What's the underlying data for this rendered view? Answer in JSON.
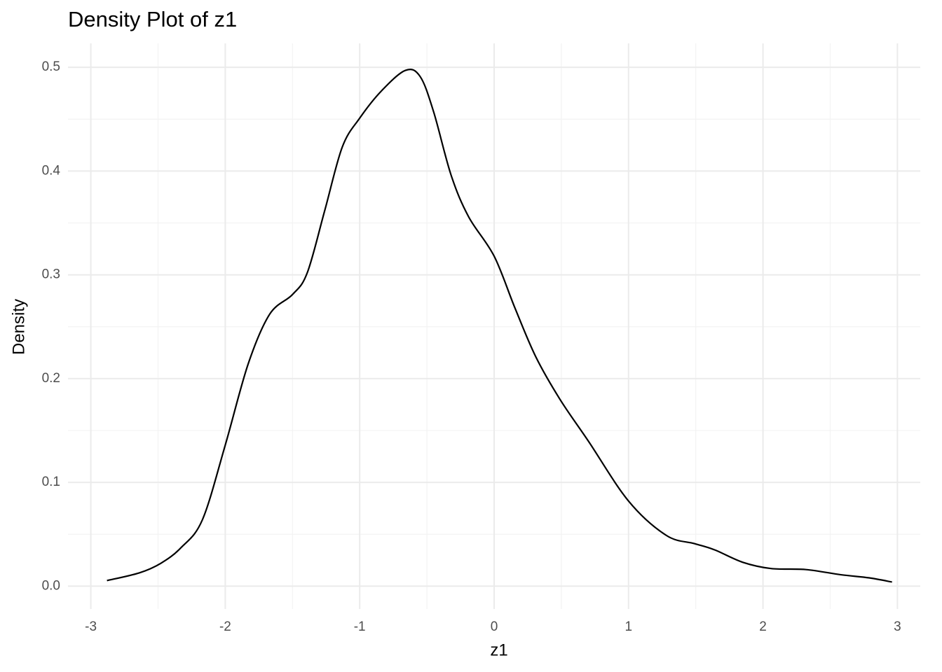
{
  "chart_data": {
    "type": "line",
    "title": "Density Plot of z1",
    "x_label": "z1",
    "y_label": "Density",
    "x": [
      -2.88,
      -2.64,
      -2.48,
      -2.33,
      -2.17,
      -2.0,
      -1.83,
      -1.67,
      -1.5,
      -1.39,
      -1.26,
      -1.13,
      -1.0,
      -0.84,
      -0.66,
      -0.55,
      -0.45,
      -0.32,
      -0.19,
      0.0,
      0.155,
      0.31,
      0.49,
      0.7,
      1.0,
      1.28,
      1.49,
      1.64,
      1.85,
      2.06,
      2.32,
      2.58,
      2.79,
      2.96
    ],
    "series": [
      {
        "name": "density",
        "color": "#000000",
        "values": [
          0.0054,
          0.0128,
          0.022,
          0.037,
          0.064,
          0.136,
          0.214,
          0.262,
          0.281,
          0.302,
          0.362,
          0.423,
          0.451,
          0.477,
          0.497,
          0.491,
          0.457,
          0.396,
          0.356,
          0.318,
          0.268,
          0.221,
          0.18,
          0.14,
          0.082,
          0.049,
          0.041,
          0.035,
          0.023,
          0.017,
          0.016,
          0.011,
          0.008,
          0.004
        ]
      }
    ],
    "xlim": [
      -3.17,
      3.17
    ],
    "ylim": [
      -0.022,
      0.523
    ],
    "xticks": [
      -3,
      -2,
      -1,
      0,
      1,
      2,
      3
    ],
    "yticks": [
      {
        "value": 0,
        "label": "0.0"
      },
      0.1,
      0.2,
      0.3,
      0.4,
      0.5
    ],
    "xminorticks": [
      -2.5,
      -1.5,
      -0.5,
      0.5,
      1.5,
      2.5
    ],
    "yminorticks": [
      0.05,
      0.15,
      0.25,
      0.35,
      0.45
    ],
    "grid": true
  }
}
